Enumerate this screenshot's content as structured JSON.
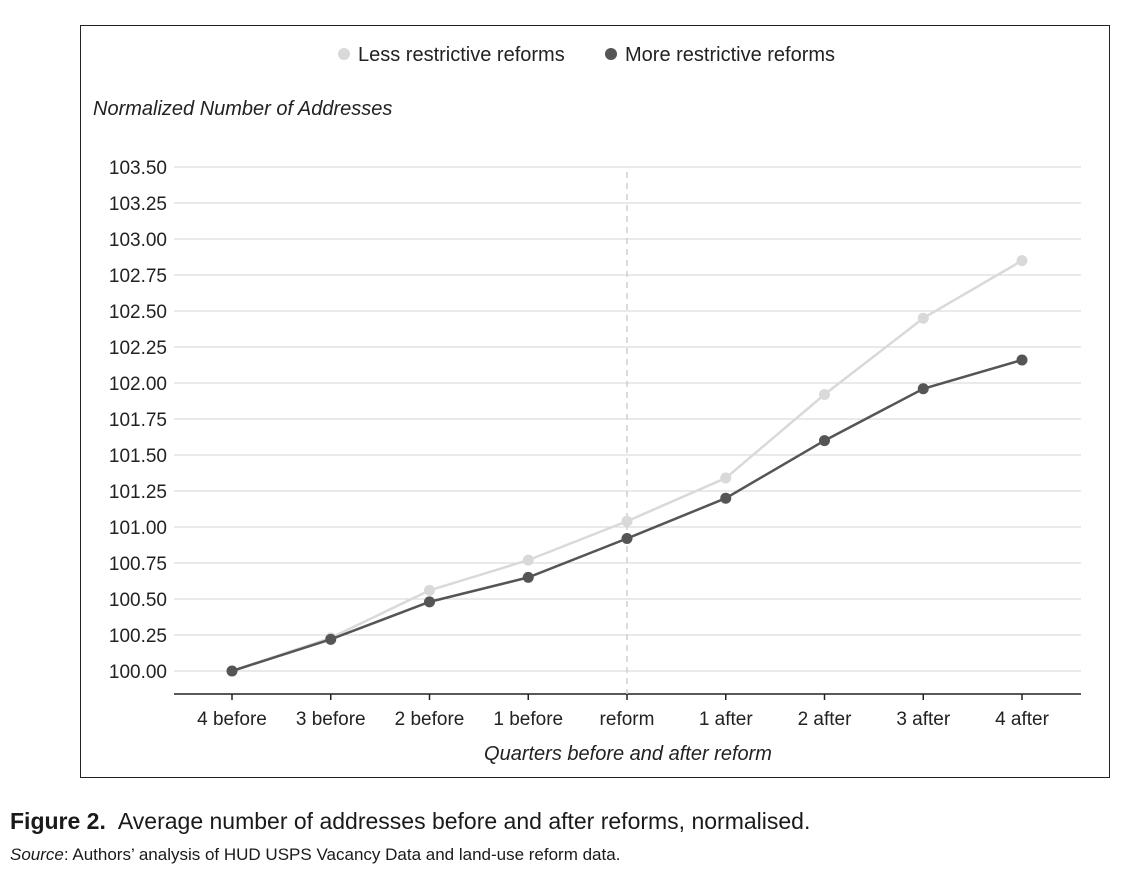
{
  "chart_data": {
    "type": "line",
    "ylabel": "Normalized Number of Addresses",
    "xlabel": "Quarters before and after reform",
    "categories": [
      "4 before",
      "3 before",
      "2 before",
      "1 before",
      "reform",
      "1 after",
      "2 after",
      "3 after",
      "4 after"
    ],
    "y_ticks": [
      "100.00",
      "100.25",
      "100.50",
      "100.75",
      "101.00",
      "101.25",
      "101.50",
      "101.75",
      "102.00",
      "102.25",
      "102.50",
      "102.75",
      "103.00",
      "103.25",
      "103.50"
    ],
    "ylim": [
      100.0,
      103.5
    ],
    "grid": "horizontal",
    "legend_position": "top-center",
    "reference_line": {
      "category": "reform",
      "style": "dashed"
    },
    "series": [
      {
        "name": "Less restrictive reforms",
        "color": "#d9d9d9",
        "values": [
          100.0,
          100.23,
          100.56,
          100.77,
          101.04,
          101.34,
          101.92,
          102.45,
          102.85
        ]
      },
      {
        "name": "More restrictive reforms",
        "color": "#555555",
        "values": [
          100.0,
          100.22,
          100.48,
          100.65,
          100.92,
          101.2,
          101.6,
          101.96,
          102.16
        ]
      }
    ]
  },
  "caption": {
    "label": "Figure 2.",
    "text": "Average number of addresses before and after reforms, normalised."
  },
  "source": {
    "label": "Source",
    "text": ": Authors’ analysis of HUD USPS Vacancy Data and land-use reform data."
  }
}
